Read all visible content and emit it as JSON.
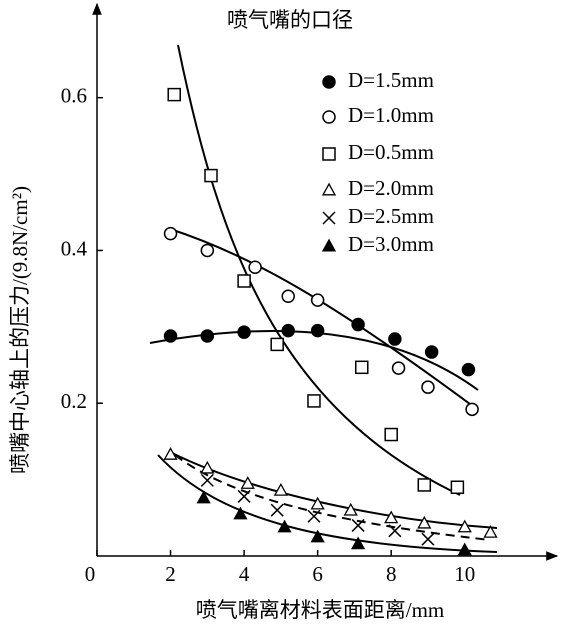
{
  "chart_data": {
    "type": "scatter",
    "title": "喷气嘴的口径",
    "x_label": "喷气嘴离材料表面距离/mm",
    "y_label": "喷嘴中心轴上的压力/(9.8N/cm²)",
    "xlim": [
      0,
      12.4
    ],
    "ylim": [
      0,
      0.72
    ],
    "xticks": [
      0,
      2,
      4,
      6,
      8,
      10
    ],
    "yticks": [
      0.2,
      0.4,
      0.6
    ],
    "series": [
      {
        "name": "D=1.5mm",
        "marker": "filled-circle",
        "color": "#000000",
        "x": [
          2,
          3,
          4,
          5.2,
          6,
          7.1,
          8.1,
          9.1,
          10.1
        ],
        "values": [
          0.288,
          0.288,
          0.293,
          0.295,
          0.295,
          0.303,
          0.284,
          0.267,
          0.244
        ]
      },
      {
        "name": "D=1.0mm",
        "marker": "open-circle",
        "color": "#000000",
        "x": [
          2,
          3,
          4.3,
          5.2,
          6,
          8.2,
          9,
          10.2
        ],
        "values": [
          0.422,
          0.4,
          0.378,
          0.34,
          0.335,
          0.246,
          0.221,
          0.192
        ]
      },
      {
        "name": "D=0.5mm",
        "marker": "open-square",
        "color": "#000000",
        "x": [
          2.1,
          3.1,
          4,
          4.9,
          5.9,
          7.2,
          8,
          8.9,
          9.8
        ],
        "values": [
          0.604,
          0.498,
          0.36,
          0.277,
          0.203,
          0.247,
          0.159,
          0.093,
          0.09
        ]
      },
      {
        "name": "D=2.0mm",
        "marker": "open-triangle",
        "color": "#000000",
        "x": [
          2,
          3,
          4.1,
          5,
          6,
          6.9,
          8,
          8.9,
          10,
          10.7
        ],
        "values": [
          0.133,
          0.115,
          0.095,
          0.086,
          0.068,
          0.06,
          0.05,
          0.043,
          0.038,
          0.031
        ]
      },
      {
        "name": "D=2.5mm",
        "marker": "cross",
        "color": "#000000",
        "x": [
          3,
          4,
          4.9,
          5.9,
          7.1,
          8.1,
          9
        ],
        "values": [
          0.099,
          0.078,
          0.06,
          0.052,
          0.04,
          0.033,
          0.022
        ]
      },
      {
        "name": "D=3.0mm",
        "marker": "filled-triangle",
        "color": "#000000",
        "x": [
          2.9,
          3.9,
          5.1,
          6,
          7.1,
          10
        ],
        "values": [
          0.076,
          0.055,
          0.038,
          0.025,
          0.016,
          0.008
        ]
      }
    ]
  }
}
